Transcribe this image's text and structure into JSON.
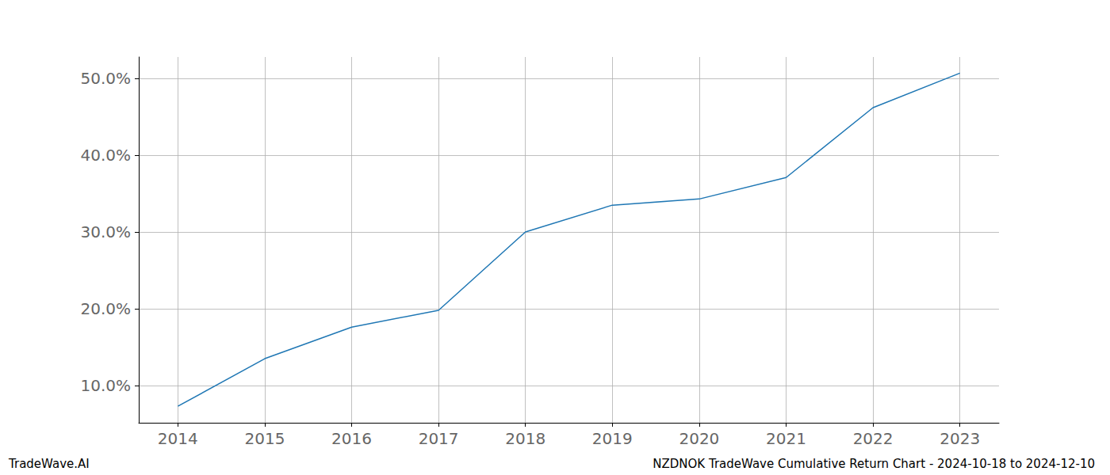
{
  "chart_data": {
    "type": "line",
    "title": "NZDNOK TradeWave Cumulative Return Chart - 2024-10-18 to 2024-12-10",
    "annotations": [
      "TradeWave.AI"
    ],
    "x": [
      2014,
      2015,
      2016,
      2017,
      2018,
      2019,
      2020,
      2021,
      2022,
      2023
    ],
    "values": [
      7.3,
      13.5,
      17.6,
      19.8,
      30.0,
      33.5,
      34.3,
      37.1,
      46.2,
      50.7
    ],
    "color": "#1f77b4",
    "xlim": [
      2013.55,
      2023.45
    ],
    "xticks": [
      2014,
      2015,
      2016,
      2017,
      2018,
      2019,
      2020,
      2021,
      2022,
      2023
    ],
    "ylim": [
      5.15,
      52.8
    ],
    "yticks": [
      {
        "value": 10,
        "label": "10.0%"
      },
      {
        "value": 20,
        "label": "20.0%"
      },
      {
        "value": 30,
        "label": "30.0%"
      },
      {
        "value": 40,
        "label": "40.0%"
      },
      {
        "value": 50,
        "label": "50.0%"
      }
    ],
    "grid": true
  }
}
